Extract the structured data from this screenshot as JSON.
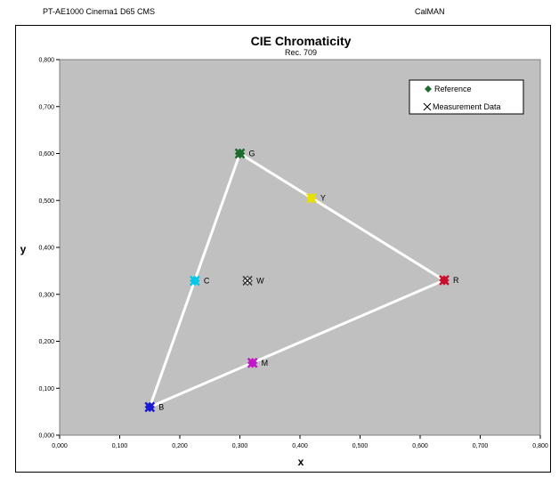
{
  "header": {
    "left": "PT-AE1000 Cinema1 D65 CMS",
    "right": "CalMAN"
  },
  "chart_data": {
    "type": "scatter",
    "title": "CIE Chromaticity",
    "subtitle": "Rec. 709",
    "xlabel": "x",
    "ylabel": "y",
    "xlim": [
      0,
      0.8
    ],
    "ylim": [
      0,
      0.8
    ],
    "x_ticks": [
      "0,000",
      "0,100",
      "0,200",
      "0,300",
      "0,400",
      "0,500",
      "0,600",
      "0,700",
      "0,800"
    ],
    "y_ticks": [
      "0,000",
      "0,100",
      "0,200",
      "0,300",
      "0,400",
      "0,500",
      "0,600",
      "0,700",
      "0,800"
    ],
    "grid": false,
    "legend": {
      "placement": "top-right",
      "entries": [
        "Reference",
        "Measurement Data"
      ]
    },
    "gamut_triangle": [
      "R",
      "G",
      "B"
    ],
    "points": [
      {
        "label": "R",
        "ref": [
          0.64,
          0.33
        ],
        "meas": [
          0.64,
          0.33
        ],
        "color": "#c8102e"
      },
      {
        "label": "G",
        "ref": [
          0.3,
          0.6
        ],
        "meas": [
          0.3,
          0.6
        ],
        "color": "#1e6b2e"
      },
      {
        "label": "B",
        "ref": [
          0.15,
          0.06
        ],
        "meas": [
          0.15,
          0.06
        ],
        "color": "#1a1ad6"
      },
      {
        "label": "Y",
        "ref": [
          0.419,
          0.505
        ],
        "meas": [
          0.419,
          0.505
        ],
        "color": "#e8e000"
      },
      {
        "label": "C",
        "ref": [
          0.225,
          0.329
        ],
        "meas": [
          0.225,
          0.329
        ],
        "color": "#00c8e8"
      },
      {
        "label": "M",
        "ref": [
          0.321,
          0.154
        ],
        "meas": [
          0.321,
          0.154
        ],
        "color": "#c018c8"
      },
      {
        "label": "W",
        "ref": [
          0.3127,
          0.329
        ],
        "meas": [
          0.3127,
          0.329
        ],
        "color": "#ffffff"
      }
    ],
    "colors": {
      "plot_background": "#c0c0c0",
      "triangle": "#ffffff",
      "reference_marker": "#1e6b2e"
    }
  }
}
